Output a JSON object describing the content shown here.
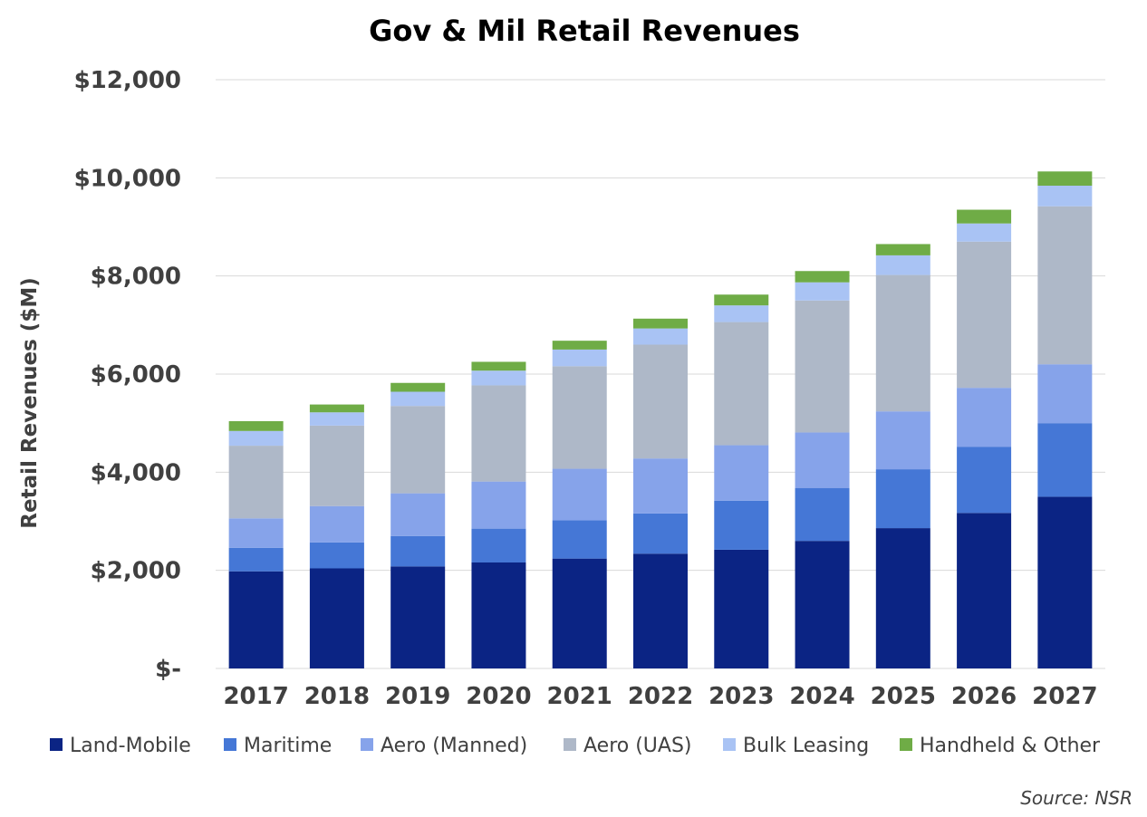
{
  "chart_data": {
    "type": "bar",
    "stacked": true,
    "title": "Gov & Mil Retail Revenues",
    "xlabel": "",
    "ylabel": "Retail Revenues ($M)",
    "ylim": [
      0,
      12000
    ],
    "yticks": [
      0,
      2000,
      4000,
      6000,
      8000,
      10000,
      12000
    ],
    "ytick_labels": [
      "$-",
      "$2,000",
      "$4,000",
      "$6,000",
      "$8,000",
      "$10,000",
      "$12,000"
    ],
    "grid": true,
    "legend_position": "bottom",
    "categories": [
      "2017",
      "2018",
      "2019",
      "2020",
      "2021",
      "2022",
      "2023",
      "2024",
      "2025",
      "2026",
      "2027"
    ],
    "series": [
      {
        "name": "Land-Mobile",
        "color": "#0b2484",
        "values": [
          1980,
          2040,
          2080,
          2160,
          2240,
          2340,
          2420,
          2600,
          2860,
          3170,
          3500
        ]
      },
      {
        "name": "Maritime",
        "color": "#4577d6",
        "values": [
          480,
          530,
          620,
          690,
          780,
          820,
          1000,
          1080,
          1200,
          1350,
          1500
        ]
      },
      {
        "name": "Aero (Manned)",
        "color": "#86a3ea",
        "values": [
          600,
          740,
          870,
          960,
          1050,
          1120,
          1130,
          1130,
          1180,
          1200,
          1200
        ]
      },
      {
        "name": "Aero (UAS)",
        "color": "#aeb8c8",
        "values": [
          1480,
          1640,
          1780,
          1960,
          2090,
          2320,
          2510,
          2690,
          2780,
          2980,
          3220
        ]
      },
      {
        "name": "Bulk Leasing",
        "color": "#a9c3f4",
        "values": [
          300,
          270,
          290,
          300,
          340,
          330,
          340,
          370,
          400,
          370,
          420
        ]
      },
      {
        "name": "Handheld & Other",
        "color": "#6fac46",
        "values": [
          200,
          160,
          180,
          180,
          180,
          200,
          220,
          230,
          230,
          280,
          290
        ]
      }
    ]
  },
  "source_note": "Source: NSR"
}
